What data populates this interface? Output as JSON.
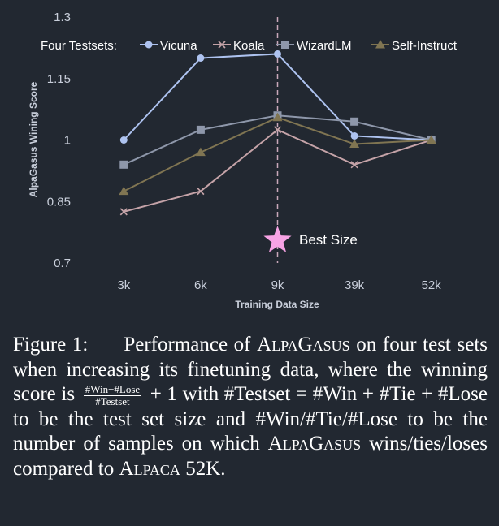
{
  "chart_data": {
    "type": "line",
    "categories": [
      "3k",
      "6k",
      "9k",
      "39k",
      "52k"
    ],
    "series": [
      {
        "name": "Vicuna",
        "values": [
          1.0,
          1.2,
          1.21,
          1.01,
          1.0
        ],
        "color": "#aec3f0",
        "marker": "circle"
      },
      {
        "name": "Koala",
        "values": [
          0.825,
          0.875,
          1.025,
          0.94,
          1.0
        ],
        "color": "#c5a3a8",
        "marker": "x"
      },
      {
        "name": "WizardLM",
        "values": [
          0.94,
          1.025,
          1.06,
          1.045,
          1.0
        ],
        "color": "#8e97aa",
        "marker": "square"
      },
      {
        "name": "Self-Instruct",
        "values": [
          0.875,
          0.97,
          1.055,
          0.99,
          1.0
        ],
        "color": "#807552",
        "marker": "triangle"
      }
    ],
    "yticks": [
      "0.7",
      "0.85",
      "1",
      "1.15",
      "1.3"
    ],
    "ylim": [
      0.7,
      1.3
    ],
    "xlabel": "Training Data Size",
    "ylabel": "AlpaGasus Wining Score",
    "legend_title": "Four Testsets:",
    "legend_position": "top",
    "grid": false,
    "annotation": {
      "label": "Best Size",
      "category": "9k",
      "y": 0.755,
      "line_color": "#c9a8ba",
      "star_color": "#f7a3e4"
    }
  },
  "caption": {
    "lead": "Figure 1:",
    "t1": "Performance of ",
    "model": "AlpaGasus",
    "t2": " on four test sets when increasing its finetuning data, where the winning score is ",
    "frac_num": "#Win−#Lose",
    "frac_den": "#Testset",
    "t3": " + 1 with #Testset = #Win + #Tie + #Lose to be the test set size and #Win/#Tie/#Lose to be the number of samples on which ",
    "model2": "AlpaGasus",
    "t4": " wins/ties/loses compared to ",
    "baseline": "Alpaca",
    "t5": " 52K."
  }
}
